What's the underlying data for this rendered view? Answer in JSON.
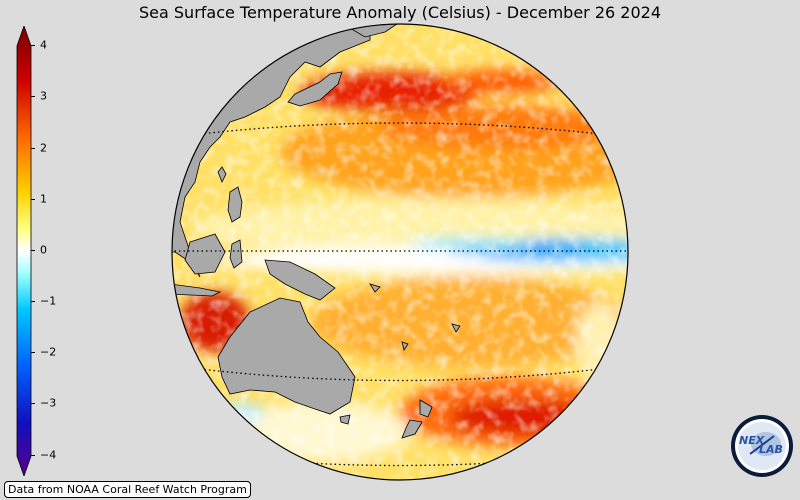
{
  "title": "Sea Surface Temperature Anomaly (Celsius) - December 26 2024",
  "colorbar": {
    "ticks": [
      "4",
      "3",
      "2",
      "1",
      "0",
      "−1",
      "−2",
      "−3",
      "−4"
    ],
    "range": [
      -4,
      4
    ],
    "colors": [
      "#6a00a8",
      "#0033ff",
      "#00b4ff",
      "#ffffff",
      "#ffee00",
      "#ff8c00",
      "#cc0000",
      "#7a0000"
    ]
  },
  "map": {
    "projection": "orthographic",
    "ocean_fill": "anomaly-field",
    "land_color": "#a9a9a9"
  },
  "credit": "Data from NOAA Coral Reef Watch Program",
  "logo": {
    "text_left": "NEX",
    "text_right": "LAB"
  }
}
